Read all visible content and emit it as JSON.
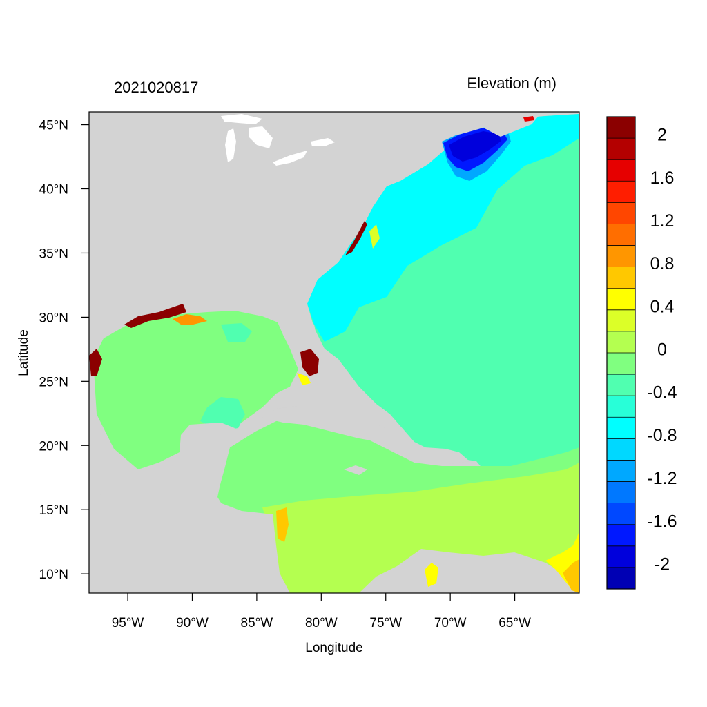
{
  "header": {
    "timestamp": "2021020817",
    "variable": "Elevation (m)"
  },
  "axes": {
    "xlabel": "Longitude",
    "ylabel": "Latitude",
    "lon_range": [
      -98,
      -60
    ],
    "lat_range": [
      8.5,
      46
    ],
    "lon_ticks": [
      {
        "value": -95,
        "label": "95°W"
      },
      {
        "value": -90,
        "label": "90°W"
      },
      {
        "value": -85,
        "label": "85°W"
      },
      {
        "value": -80,
        "label": "80°W"
      },
      {
        "value": -75,
        "label": "75°W"
      },
      {
        "value": -70,
        "label": "70°W"
      },
      {
        "value": -65,
        "label": "65°W"
      }
    ],
    "lat_ticks": [
      {
        "value": 45,
        "label": "45°N"
      },
      {
        "value": 40,
        "label": "40°N"
      },
      {
        "value": 35,
        "label": "35°N"
      },
      {
        "value": 30,
        "label": "30°N"
      },
      {
        "value": 25,
        "label": "25°N"
      },
      {
        "value": 20,
        "label": "20°N"
      },
      {
        "value": 15,
        "label": "15°N"
      },
      {
        "value": 10,
        "label": "10°N"
      }
    ]
  },
  "colorbar": {
    "label_values": [
      "2",
      "1.6",
      "1.2",
      "0.8",
      "0.4",
      "0",
      "-0.4",
      "-0.8",
      "-1.2",
      "-1.6",
      "-2"
    ],
    "bins_top_to_bottom": [
      "#8b0000",
      "#b40000",
      "#e60000",
      "#ff1e00",
      "#ff4600",
      "#ff6e00",
      "#ff9600",
      "#ffc800",
      "#ffff00",
      "#dcff28",
      "#b4ff50",
      "#80ff80",
      "#50ffb0",
      "#28ffd8",
      "#00ffff",
      "#00d8ff",
      "#00a8ff",
      "#0078ff",
      "#0048ff",
      "#0018ff",
      "#0000dc",
      "#0000b4"
    ]
  },
  "colors": {
    "land": "#d3d3d3",
    "water_white": "#ffffff"
  }
}
